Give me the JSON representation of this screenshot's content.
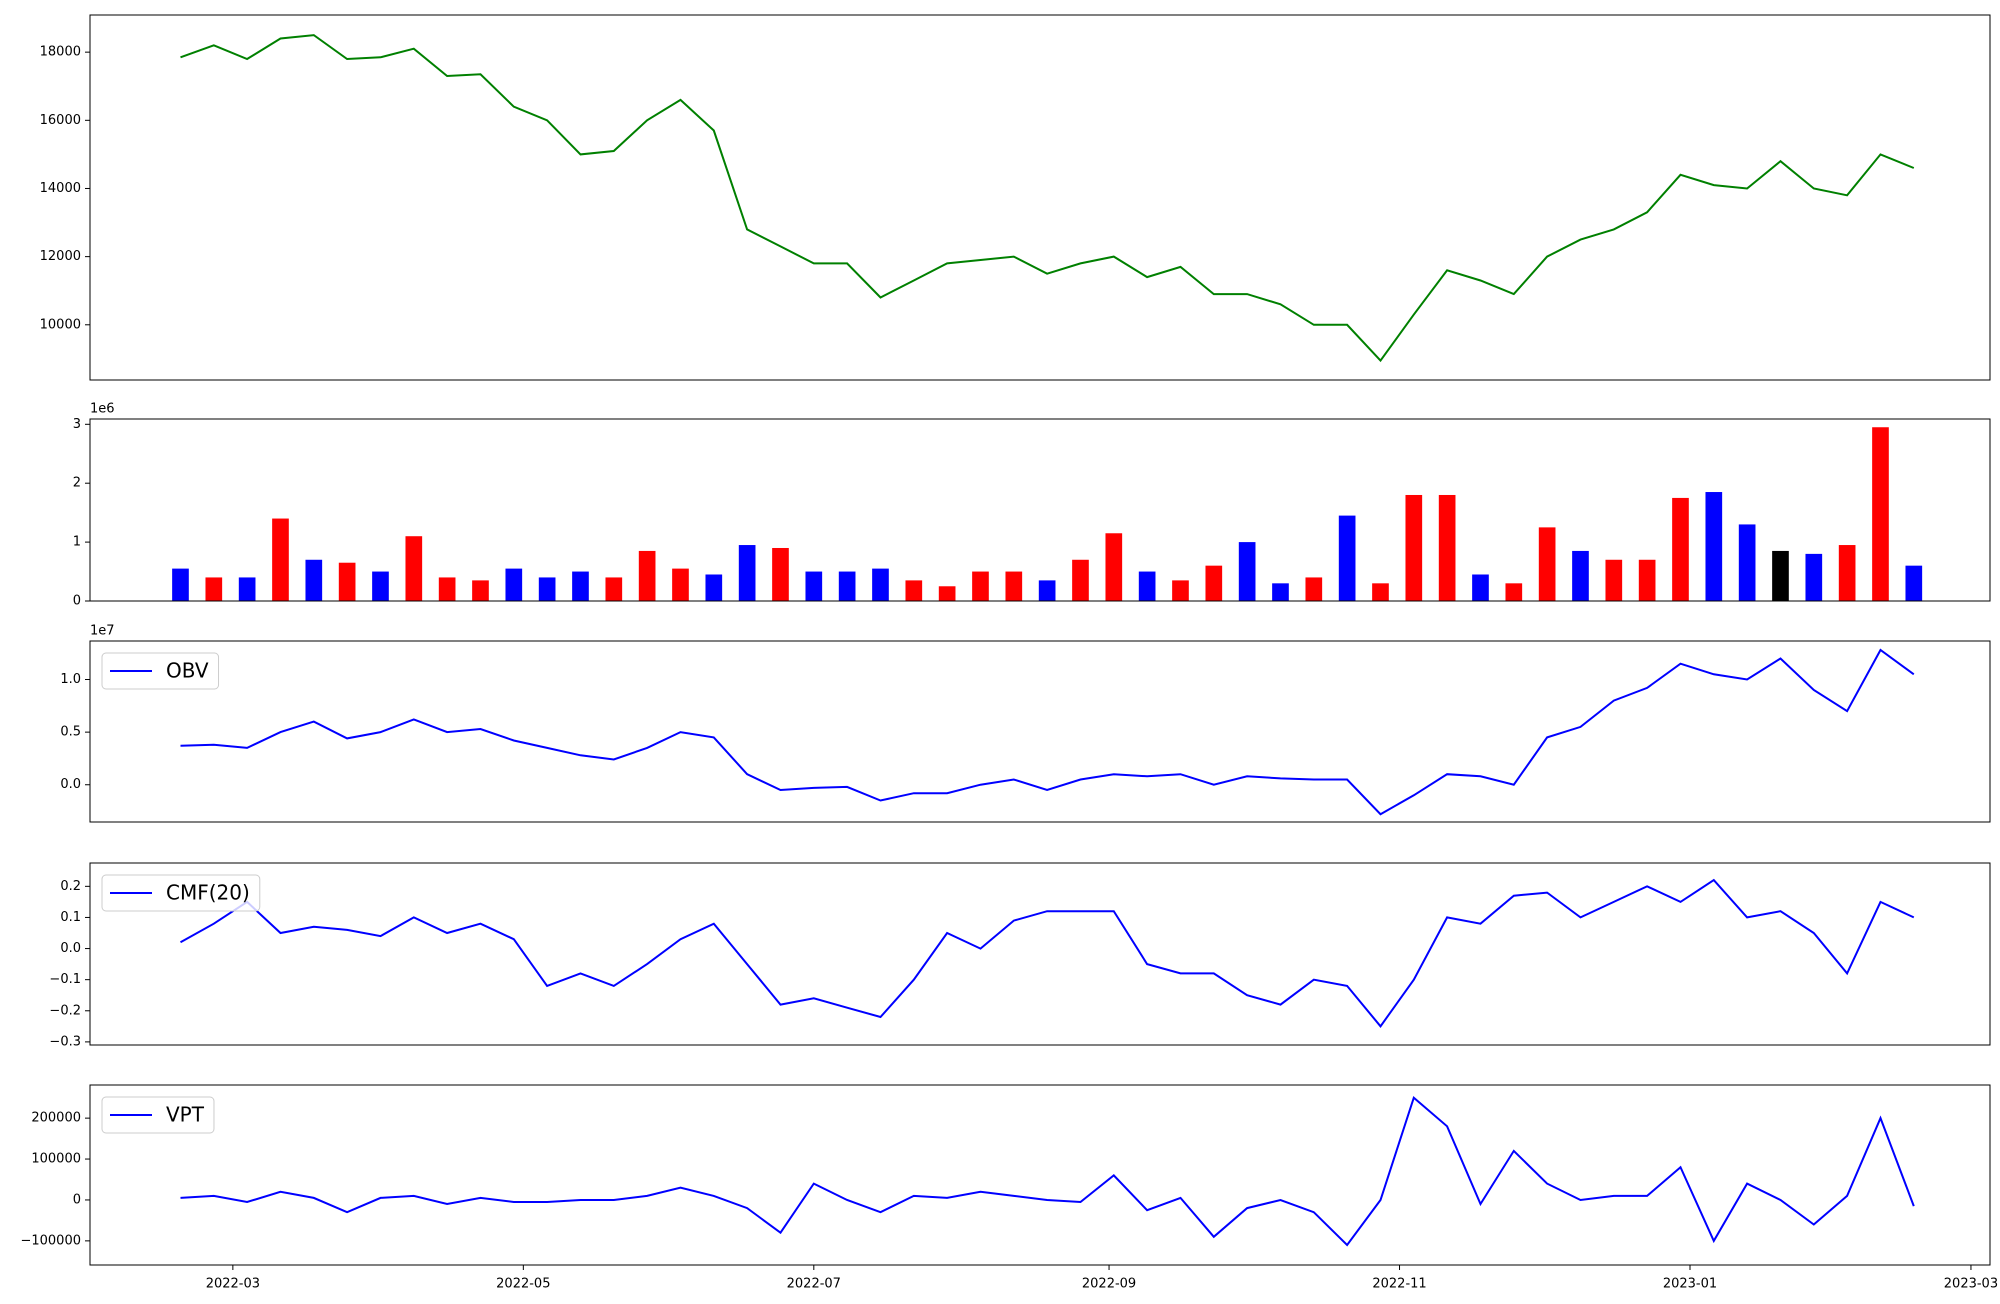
{
  "chart_data": [
    {
      "type": "line",
      "color": "#008000",
      "x": [
        "2022-02-18",
        "2022-02-25",
        "2022-03-04",
        "2022-03-11",
        "2022-03-18",
        "2022-03-25",
        "2022-04-01",
        "2022-04-08",
        "2022-04-15",
        "2022-04-22",
        "2022-04-29",
        "2022-05-06",
        "2022-05-13",
        "2022-05-20",
        "2022-05-27",
        "2022-06-03",
        "2022-06-10",
        "2022-06-17",
        "2022-06-24",
        "2022-07-01",
        "2022-07-08",
        "2022-07-15",
        "2022-07-22",
        "2022-07-29",
        "2022-08-05",
        "2022-08-12",
        "2022-08-19",
        "2022-08-26",
        "2022-09-02",
        "2022-09-09",
        "2022-09-16",
        "2022-09-23",
        "2022-09-30",
        "2022-10-07",
        "2022-10-14",
        "2022-10-21",
        "2022-10-28",
        "2022-11-04",
        "2022-11-11",
        "2022-11-18",
        "2022-11-25",
        "2022-12-02",
        "2022-12-09",
        "2022-12-16",
        "2022-12-23",
        "2022-12-30",
        "2023-01-06",
        "2023-01-13",
        "2023-01-20",
        "2023-01-27",
        "2023-02-03",
        "2023-02-10",
        "2023-02-17"
      ],
      "values": [
        17850,
        18200,
        17800,
        18400,
        18500,
        17800,
        17850,
        18100,
        17300,
        17350,
        16400,
        16000,
        15000,
        15100,
        16000,
        16600,
        15700,
        12800,
        12300,
        11800,
        11800,
        10800,
        11300,
        11800,
        11900,
        12000,
        11500,
        11800,
        12000,
        11400,
        11700,
        10900,
        10900,
        10600,
        10000,
        10000,
        8950,
        10300,
        11600,
        11300,
        10900,
        12000,
        12500,
        12800,
        13300,
        14400,
        14100,
        14000,
        14800,
        14000,
        13800,
        15000,
        14600
      ],
      "xlim": [
        "2022-01-30",
        "2023-03-05"
      ],
      "ylim": [
        8380,
        19090
      ],
      "yticks": [
        10000,
        12000,
        14000,
        16000,
        18000
      ]
    },
    {
      "type": "bar",
      "offset_label": "1e6",
      "x": [
        "2022-02-18",
        "2022-02-25",
        "2022-03-04",
        "2022-03-11",
        "2022-03-18",
        "2022-03-25",
        "2022-04-01",
        "2022-04-08",
        "2022-04-15",
        "2022-04-22",
        "2022-04-29",
        "2022-05-06",
        "2022-05-13",
        "2022-05-20",
        "2022-05-27",
        "2022-06-03",
        "2022-06-10",
        "2022-06-17",
        "2022-06-24",
        "2022-07-01",
        "2022-07-08",
        "2022-07-15",
        "2022-07-22",
        "2022-07-29",
        "2022-08-05",
        "2022-08-12",
        "2022-08-19",
        "2022-08-26",
        "2022-09-02",
        "2022-09-09",
        "2022-09-16",
        "2022-09-23",
        "2022-09-30",
        "2022-10-07",
        "2022-10-14",
        "2022-10-21",
        "2022-10-28",
        "2022-11-04",
        "2022-11-11",
        "2022-11-18",
        "2022-11-25",
        "2022-12-02",
        "2022-12-09",
        "2022-12-16",
        "2022-12-23",
        "2022-12-30",
        "2023-01-06",
        "2023-01-13",
        "2023-01-20",
        "2023-01-27",
        "2023-02-03",
        "2023-02-10",
        "2023-02-17"
      ],
      "values": [
        550000,
        400000,
        400000,
        1400000,
        700000,
        650000,
        500000,
        1100000,
        400000,
        350000,
        550000,
        400000,
        500000,
        400000,
        850000,
        550000,
        450000,
        950000,
        900000,
        500000,
        500000,
        550000,
        350000,
        250000,
        500000,
        500000,
        350000,
        700000,
        1150000,
        500000,
        350000,
        600000,
        1000000,
        300000,
        400000,
        1450000,
        300000,
        1800000,
        1800000,
        450000,
        300000,
        1250000,
        850000,
        700000,
        700000,
        1750000,
        1850000,
        1300000,
        850000,
        800000,
        950000,
        2950000,
        600000
      ],
      "colors": [
        "blue",
        "red",
        "blue",
        "red",
        "blue",
        "red",
        "blue",
        "red",
        "red",
        "red",
        "blue",
        "blue",
        "blue",
        "red",
        "red",
        "red",
        "blue",
        "blue",
        "red",
        "blue",
        "blue",
        "blue",
        "red",
        "red",
        "red",
        "red",
        "blue",
        "red",
        "red",
        "blue",
        "red",
        "red",
        "blue",
        "blue",
        "red",
        "blue",
        "red",
        "red",
        "red",
        "blue",
        "red",
        "red",
        "blue",
        "red",
        "red",
        "red",
        "blue",
        "blue",
        "black",
        "blue",
        "red",
        "red",
        "blue"
      ],
      "xlim": [
        "2022-01-30",
        "2023-03-05"
      ],
      "ylim": [
        0,
        3090000
      ],
      "yticks": [
        0,
        {
          "value": 1000000,
          "label": "1"
        },
        {
          "value": 2000000,
          "label": "2"
        },
        {
          "value": 3000000,
          "label": "3"
        }
      ]
    },
    {
      "type": "line",
      "offset_label": "1e7",
      "legend": "upper left",
      "x": [
        "2022-02-18",
        "2022-02-25",
        "2022-03-04",
        "2022-03-11",
        "2022-03-18",
        "2022-03-25",
        "2022-04-01",
        "2022-04-08",
        "2022-04-15",
        "2022-04-22",
        "2022-04-29",
        "2022-05-06",
        "2022-05-13",
        "2022-05-20",
        "2022-05-27",
        "2022-06-03",
        "2022-06-10",
        "2022-06-17",
        "2022-06-24",
        "2022-07-01",
        "2022-07-08",
        "2022-07-15",
        "2022-07-22",
        "2022-07-29",
        "2022-08-05",
        "2022-08-12",
        "2022-08-19",
        "2022-08-26",
        "2022-09-02",
        "2022-09-09",
        "2022-09-16",
        "2022-09-23",
        "2022-09-30",
        "2022-10-07",
        "2022-10-14",
        "2022-10-21",
        "2022-10-28",
        "2022-11-04",
        "2022-11-11",
        "2022-11-18",
        "2022-11-25",
        "2022-12-02",
        "2022-12-09",
        "2022-12-16",
        "2022-12-23",
        "2022-12-30",
        "2023-01-06",
        "2023-01-13",
        "2023-01-20",
        "2023-01-27",
        "2023-02-03",
        "2023-02-10",
        "2023-02-17"
      ],
      "series": [
        {
          "name": "OBV",
          "color": "#0000ff",
          "values": [
            3700000,
            3800000,
            3500000,
            5000000,
            6000000,
            4400000,
            5000000,
            6200000,
            5000000,
            5300000,
            4200000,
            3500000,
            2800000,
            2400000,
            3500000,
            5000000,
            4500000,
            1000000,
            -500000,
            -300000,
            -200000,
            -1500000,
            -800000,
            -800000,
            0,
            500000,
            -500000,
            500000,
            1000000,
            800000,
            1000000,
            0,
            800000,
            600000,
            500000,
            500000,
            -2800000,
            -1000000,
            1000000,
            800000,
            0,
            4500000,
            5500000,
            8000000,
            9200000,
            11500000,
            10500000,
            10000000,
            12000000,
            9000000,
            7000000,
            12800000,
            10500000
          ]
        }
      ],
      "xlim": [
        "2022-01-30",
        "2023-03-05"
      ],
      "ylim": [
        -3540000,
        13660000
      ],
      "yticks": [
        {
          "value": 0,
          "label": "0.0"
        },
        {
          "value": 5000000,
          "label": "0.5"
        },
        {
          "value": 10000000,
          "label": "1.0"
        }
      ]
    },
    {
      "type": "line",
      "legend": "upper left",
      "x": [
        "2022-02-18",
        "2022-02-25",
        "2022-03-04",
        "2022-03-11",
        "2022-03-18",
        "2022-03-25",
        "2022-04-01",
        "2022-04-08",
        "2022-04-15",
        "2022-04-22",
        "2022-04-29",
        "2022-05-06",
        "2022-05-13",
        "2022-05-20",
        "2022-05-27",
        "2022-06-03",
        "2022-06-10",
        "2022-06-17",
        "2022-06-24",
        "2022-07-01",
        "2022-07-08",
        "2022-07-15",
        "2022-07-22",
        "2022-07-29",
        "2022-08-05",
        "2022-08-12",
        "2022-08-19",
        "2022-08-26",
        "2022-09-02",
        "2022-09-09",
        "2022-09-16",
        "2022-09-23",
        "2022-09-30",
        "2022-10-07",
        "2022-10-14",
        "2022-10-21",
        "2022-10-28",
        "2022-11-04",
        "2022-11-11",
        "2022-11-18",
        "2022-11-25",
        "2022-12-02",
        "2022-12-09",
        "2022-12-16",
        "2022-12-23",
        "2022-12-30",
        "2023-01-06",
        "2023-01-13",
        "2023-01-20",
        "2023-01-27",
        "2023-02-03",
        "2023-02-10",
        "2023-02-17"
      ],
      "series": [
        {
          "name": "CMF(20)",
          "color": "#0000ff",
          "values": [
            0.02,
            0.08,
            0.15,
            0.05,
            0.07,
            0.06,
            0.04,
            0.1,
            0.05,
            0.08,
            0.03,
            -0.12,
            -0.08,
            -0.12,
            -0.05,
            0.03,
            0.08,
            -0.05,
            -0.18,
            -0.16,
            -0.19,
            -0.22,
            -0.1,
            0.05,
            0.0,
            0.09,
            0.12,
            0.12,
            0.12,
            -0.05,
            -0.08,
            -0.08,
            -0.15,
            -0.18,
            -0.1,
            -0.12,
            -0.25,
            -0.1,
            0.1,
            0.08,
            0.17,
            0.18,
            0.1,
            0.15,
            0.2,
            0.15,
            0.22,
            0.1,
            0.12,
            0.05,
            -0.08,
            0.15,
            0.1
          ]
        }
      ],
      "xlim": [
        "2022-01-30",
        "2023-03-05"
      ],
      "ylim": [
        -0.31,
        0.275
      ],
      "yticks": [
        {
          "value": -0.3,
          "label": "−0.3"
        },
        {
          "value": -0.2,
          "label": "−0.2"
        },
        {
          "value": -0.1,
          "label": "−0.1"
        },
        {
          "value": 0,
          "label": "0.0"
        },
        0.1,
        0.2
      ]
    },
    {
      "type": "line",
      "legend": "upper left",
      "x": [
        "2022-02-18",
        "2022-02-25",
        "2022-03-04",
        "2022-03-11",
        "2022-03-18",
        "2022-03-25",
        "2022-04-01",
        "2022-04-08",
        "2022-04-15",
        "2022-04-22",
        "2022-04-29",
        "2022-05-06",
        "2022-05-13",
        "2022-05-20",
        "2022-05-27",
        "2022-06-03",
        "2022-06-10",
        "2022-06-17",
        "2022-06-24",
        "2022-07-01",
        "2022-07-08",
        "2022-07-15",
        "2022-07-22",
        "2022-07-29",
        "2022-08-05",
        "2022-08-12",
        "2022-08-19",
        "2022-08-26",
        "2022-09-02",
        "2022-09-09",
        "2022-09-16",
        "2022-09-23",
        "2022-09-30",
        "2022-10-07",
        "2022-10-14",
        "2022-10-21",
        "2022-10-28",
        "2022-11-04",
        "2022-11-11",
        "2022-11-18",
        "2022-11-25",
        "2022-12-02",
        "2022-12-09",
        "2022-12-16",
        "2022-12-23",
        "2022-12-30",
        "2023-01-06",
        "2023-01-13",
        "2023-01-20",
        "2023-01-27",
        "2023-02-03",
        "2023-02-10",
        "2023-02-17"
      ],
      "series": [
        {
          "name": "VPT",
          "color": "#0000ff",
          "values": [
            5000,
            10000,
            -5000,
            20000,
            5000,
            -30000,
            5000,
            10000,
            -10000,
            5000,
            -5000,
            -5000,
            0,
            0,
            10000,
            30000,
            10000,
            -20000,
            -80000,
            40000,
            0,
            -30000,
            10000,
            5000,
            20000,
            10000,
            0,
            -5000,
            60000,
            -25000,
            5000,
            -90000,
            -20000,
            0,
            -30000,
            -110000,
            0,
            250000,
            180000,
            -10000,
            120000,
            40000,
            0,
            10000,
            10000,
            80000,
            -100000,
            40000,
            0,
            -60000,
            10000,
            200000,
            -15000
          ]
        }
      ],
      "xlim": [
        "2022-01-30",
        "2023-03-05"
      ],
      "xticks": [
        {
          "value": "2022-03-01",
          "label": "2022-03"
        },
        {
          "value": "2022-05-01",
          "label": "2022-05"
        },
        {
          "value": "2022-07-01",
          "label": "2022-07"
        },
        {
          "value": "2022-09-01",
          "label": "2022-09"
        },
        {
          "value": "2022-11-01",
          "label": "2022-11"
        },
        {
          "value": "2023-01-01",
          "label": "2023-01"
        },
        {
          "value": "2023-03-01",
          "label": "2023-03"
        }
      ],
      "ylim": [
        -159000,
        281000
      ],
      "yticks": [
        {
          "value": -100000,
          "label": "−100000"
        },
        0,
        100000,
        200000
      ]
    }
  ]
}
